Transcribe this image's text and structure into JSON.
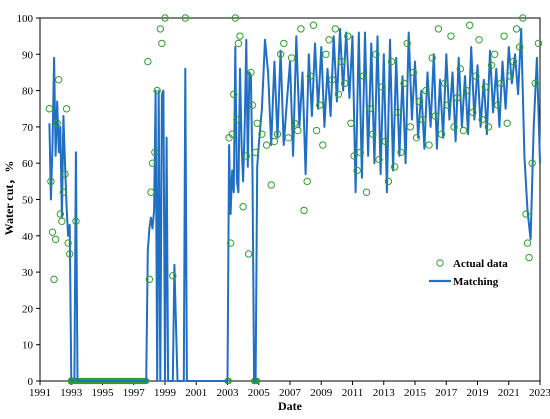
{
  "chart_data": {
    "type": "line",
    "xlabel": "Date",
    "ylabel": "Water cut，%",
    "xlim": [
      1991,
      2023
    ],
    "ylim": [
      0,
      100
    ],
    "x_ticks": [
      "1991",
      "1993",
      "1995",
      "1997",
      "1999",
      "2001",
      "2003",
      "2005",
      "2007",
      "2009",
      "2011",
      "2013",
      "2015",
      "2017",
      "2019",
      "2021",
      "2023"
    ],
    "y_ticks": [
      "0",
      "10",
      "20",
      "30",
      "40",
      "50",
      "60",
      "70",
      "80",
      "90",
      "100"
    ],
    "grid": false,
    "legend_position": "right",
    "series": [
      {
        "name": "Actual data",
        "kind": "scatter",
        "color": "#2ca02c",
        "points": [
          [
            1991.6,
            75
          ],
          [
            1991.7,
            55
          ],
          [
            1991.8,
            41
          ],
          [
            1991.9,
            28
          ],
          [
            1992.0,
            39
          ],
          [
            1992.1,
            71
          ],
          [
            1992.2,
            83
          ],
          [
            1992.3,
            46
          ],
          [
            1992.4,
            44
          ],
          [
            1992.5,
            52
          ],
          [
            1992.6,
            57
          ],
          [
            1992.7,
            75
          ],
          [
            1992.8,
            38
          ],
          [
            1992.9,
            35
          ],
          [
            1993.0,
            0
          ],
          [
            1993.3,
            44
          ],
          [
            1997.9,
            88
          ],
          [
            1998.0,
            28
          ],
          [
            1998.1,
            52
          ],
          [
            1998.2,
            60
          ],
          [
            1998.35,
            63
          ],
          [
            1998.5,
            80
          ],
          [
            1998.7,
            97
          ],
          [
            1998.8,
            93
          ],
          [
            1999.0,
            100
          ],
          [
            1999.5,
            29
          ],
          [
            2000.3,
            100
          ],
          [
            2003.1,
            67
          ],
          [
            2003.2,
            38
          ],
          [
            2003.3,
            68
          ],
          [
            2003.4,
            79
          ],
          [
            2003.5,
            100
          ],
          [
            2003.6,
            72
          ],
          [
            2003.7,
            93
          ],
          [
            2003.8,
            95
          ],
          [
            2004.0,
            48
          ],
          [
            2004.2,
            62
          ],
          [
            2004.35,
            35
          ],
          [
            2004.5,
            85
          ],
          [
            2004.6,
            76
          ],
          [
            2004.8,
            63
          ],
          [
            2004.9,
            71
          ],
          [
            2005.2,
            68
          ],
          [
            2005.5,
            65
          ],
          [
            2005.8,
            54
          ],
          [
            2006.0,
            66
          ],
          [
            2006.2,
            68
          ],
          [
            2006.4,
            90
          ],
          [
            2006.6,
            93
          ],
          [
            2006.9,
            67
          ],
          [
            2007.1,
            89
          ],
          [
            2007.3,
            71
          ],
          [
            2007.5,
            69
          ],
          [
            2007.7,
            97
          ],
          [
            2007.9,
            47
          ],
          [
            2008.1,
            55
          ],
          [
            2008.3,
            84
          ],
          [
            2008.5,
            98
          ],
          [
            2008.7,
            69
          ],
          [
            2008.9,
            76
          ],
          [
            2009.1,
            65
          ],
          [
            2009.3,
            90
          ],
          [
            2009.5,
            94
          ],
          [
            2009.7,
            83
          ],
          [
            2009.9,
            97
          ],
          [
            2010.1,
            79
          ],
          [
            2010.3,
            88
          ],
          [
            2010.5,
            82
          ],
          [
            2010.7,
            95
          ],
          [
            2010.9,
            71
          ],
          [
            2011.1,
            62
          ],
          [
            2011.3,
            58
          ],
          [
            2011.5,
            63
          ],
          [
            2011.7,
            84
          ],
          [
            2011.9,
            52
          ],
          [
            2012.1,
            75
          ],
          [
            2012.3,
            68
          ],
          [
            2012.5,
            90
          ],
          [
            2012.7,
            61
          ],
          [
            2012.9,
            81
          ],
          [
            2013.1,
            66
          ],
          [
            2013.3,
            55
          ],
          [
            2013.5,
            88
          ],
          [
            2013.7,
            59
          ],
          [
            2013.9,
            74
          ],
          [
            2014.1,
            63
          ],
          [
            2014.3,
            82
          ],
          [
            2014.5,
            93
          ],
          [
            2014.7,
            70
          ],
          [
            2014.9,
            85
          ],
          [
            2015.1,
            67
          ],
          [
            2015.3,
            77
          ],
          [
            2015.5,
            72
          ],
          [
            2015.7,
            80
          ],
          [
            2015.9,
            65
          ],
          [
            2016.1,
            89
          ],
          [
            2016.3,
            73
          ],
          [
            2016.5,
            97
          ],
          [
            2016.7,
            68
          ],
          [
            2016.9,
            82
          ],
          [
            2017.1,
            76
          ],
          [
            2017.3,
            95
          ],
          [
            2017.5,
            70
          ],
          [
            2017.7,
            78
          ],
          [
            2017.9,
            86
          ],
          [
            2018.1,
            69
          ],
          [
            2018.3,
            80
          ],
          [
            2018.5,
            98
          ],
          [
            2018.7,
            74
          ],
          [
            2018.9,
            84
          ],
          [
            2019.1,
            94
          ],
          [
            2019.3,
            72
          ],
          [
            2019.5,
            81
          ],
          [
            2019.7,
            70
          ],
          [
            2019.9,
            87
          ],
          [
            2020.1,
            90
          ],
          [
            2020.3,
            76
          ],
          [
            2020.5,
            82
          ],
          [
            2020.7,
            95
          ],
          [
            2020.9,
            71
          ],
          [
            2021.1,
            84
          ],
          [
            2021.3,
            88
          ],
          [
            2021.5,
            97
          ],
          [
            2021.7,
            92
          ],
          [
            2021.9,
            100
          ],
          [
            2022.1,
            46
          ],
          [
            2022.2,
            38
          ],
          [
            2022.3,
            34
          ],
          [
            2022.5,
            60
          ],
          [
            2022.7,
            82
          ],
          [
            2022.9,
            93
          ]
        ]
      },
      {
        "name": "Matching",
        "kind": "line",
        "color": "#1f6fc4",
        "points": [
          [
            1991.6,
            71
          ],
          [
            1991.7,
            50
          ],
          [
            1991.8,
            65
          ],
          [
            1991.9,
            89
          ],
          [
            1992.0,
            62
          ],
          [
            1992.1,
            77
          ],
          [
            1992.2,
            63
          ],
          [
            1992.3,
            70
          ],
          [
            1992.4,
            45
          ],
          [
            1992.5,
            73
          ],
          [
            1992.6,
            60
          ],
          [
            1992.7,
            48
          ],
          [
            1992.8,
            40
          ],
          [
            1992.9,
            43
          ],
          [
            1993.0,
            0
          ],
          [
            1993.2,
            0
          ],
          [
            1993.3,
            63
          ],
          [
            1993.4,
            0
          ],
          [
            1997.8,
            0
          ],
          [
            1997.9,
            36
          ],
          [
            1998.0,
            42
          ],
          [
            1998.1,
            45
          ],
          [
            1998.2,
            42
          ],
          [
            1998.3,
            47
          ],
          [
            1998.4,
            80
          ],
          [
            1998.5,
            0
          ],
          [
            1998.6,
            80
          ],
          [
            1998.7,
            0
          ],
          [
            1998.8,
            79
          ],
          [
            1998.9,
            80
          ],
          [
            1999.0,
            0
          ],
          [
            1999.1,
            67
          ],
          [
            1999.2,
            0
          ],
          [
            1999.5,
            0
          ],
          [
            1999.6,
            32
          ],
          [
            1999.8,
            0
          ],
          [
            2000.2,
            0
          ],
          [
            2000.3,
            86
          ],
          [
            2000.4,
            0
          ],
          [
            2003.0,
            0
          ],
          [
            2003.1,
            65
          ],
          [
            2003.2,
            46
          ],
          [
            2003.3,
            58
          ],
          [
            2003.4,
            52
          ],
          [
            2003.5,
            92
          ],
          [
            2003.6,
            55
          ],
          [
            2003.7,
            52
          ],
          [
            2003.8,
            86
          ],
          [
            2003.9,
            65
          ],
          [
            2004.0,
            55
          ],
          [
            2004.1,
            70
          ],
          [
            2004.2,
            94
          ],
          [
            2004.3,
            59
          ],
          [
            2004.4,
            85
          ],
          [
            2004.5,
            84
          ],
          [
            2004.6,
            57
          ],
          [
            2004.7,
            0
          ],
          [
            2004.8,
            0
          ],
          [
            2004.9,
            59
          ],
          [
            2005.0,
            65
          ],
          [
            2005.2,
            75
          ],
          [
            2005.4,
            94
          ],
          [
            2005.6,
            85
          ],
          [
            2005.8,
            65
          ],
          [
            2006.0,
            88
          ],
          [
            2006.2,
            67
          ],
          [
            2006.4,
            91
          ],
          [
            2006.6,
            65
          ],
          [
            2006.8,
            77
          ],
          [
            2007.0,
            88
          ],
          [
            2007.2,
            62
          ],
          [
            2007.4,
            95
          ],
          [
            2007.6,
            70
          ],
          [
            2007.8,
            85
          ],
          [
            2008.0,
            57
          ],
          [
            2008.2,
            90
          ],
          [
            2008.4,
            73
          ],
          [
            2008.6,
            93
          ],
          [
            2008.8,
            75
          ],
          [
            2009.0,
            92
          ],
          [
            2009.2,
            70
          ],
          [
            2009.4,
            86
          ],
          [
            2009.6,
            73
          ],
          [
            2009.8,
            95
          ],
          [
            2010.0,
            77
          ],
          [
            2010.2,
            97
          ],
          [
            2010.4,
            80
          ],
          [
            2010.6,
            96
          ],
          [
            2010.8,
            78
          ],
          [
            2011.0,
            95
          ],
          [
            2011.2,
            52
          ],
          [
            2011.4,
            96
          ],
          [
            2011.6,
            56
          ],
          [
            2011.8,
            96
          ],
          [
            2012.0,
            62
          ],
          [
            2012.2,
            93
          ],
          [
            2012.4,
            60
          ],
          [
            2012.6,
            95
          ],
          [
            2012.8,
            57
          ],
          [
            2013.0,
            90
          ],
          [
            2013.2,
            52
          ],
          [
            2013.4,
            94
          ],
          [
            2013.6,
            58
          ],
          [
            2013.8,
            89
          ],
          [
            2014.0,
            62
          ],
          [
            2014.2,
            84
          ],
          [
            2014.4,
            60
          ],
          [
            2014.6,
            96
          ],
          [
            2014.8,
            72
          ],
          [
            2015.0,
            88
          ],
          [
            2015.2,
            67
          ],
          [
            2015.4,
            80
          ],
          [
            2015.6,
            64
          ],
          [
            2015.8,
            85
          ],
          [
            2016.0,
            70
          ],
          [
            2016.2,
            90
          ],
          [
            2016.4,
            64
          ],
          [
            2016.6,
            83
          ],
          [
            2016.8,
            67
          ],
          [
            2017.0,
            90
          ],
          [
            2017.2,
            72
          ],
          [
            2017.4,
            85
          ],
          [
            2017.6,
            66
          ],
          [
            2017.8,
            89
          ],
          [
            2018.0,
            70
          ],
          [
            2018.2,
            84
          ],
          [
            2018.4,
            68
          ],
          [
            2018.6,
            92
          ],
          [
            2018.8,
            72
          ],
          [
            2019.0,
            87
          ],
          [
            2019.2,
            70
          ],
          [
            2019.4,
            83
          ],
          [
            2019.6,
            68
          ],
          [
            2019.8,
            91
          ],
          [
            2020.0,
            74
          ],
          [
            2020.2,
            86
          ],
          [
            2020.4,
            70
          ],
          [
            2020.6,
            88
          ],
          [
            2020.8,
            75
          ],
          [
            2021.0,
            92
          ],
          [
            2021.2,
            82
          ],
          [
            2021.4,
            90
          ],
          [
            2021.6,
            79
          ],
          [
            2021.8,
            97
          ],
          [
            2022.0,
            62
          ],
          [
            2022.2,
            47
          ],
          [
            2022.4,
            39
          ],
          [
            2022.6,
            70
          ],
          [
            2022.8,
            89
          ],
          [
            2023.0,
            60
          ]
        ]
      }
    ]
  }
}
